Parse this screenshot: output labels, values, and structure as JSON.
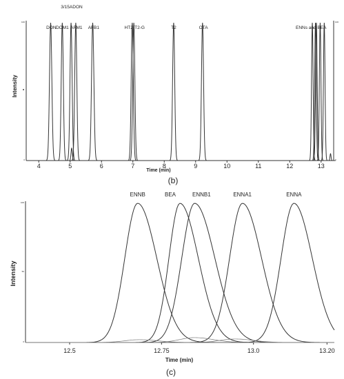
{
  "chart_data": [
    {
      "type": "line",
      "panel_label": "(b)",
      "xlabel": "Time (min)",
      "ylabel": "Intensity",
      "xlim": [
        3.6,
        13.4
      ],
      "x_ticks": [
        "4",
        "5",
        "6",
        "7",
        "8",
        "9",
        "10",
        "11",
        "12",
        "13"
      ],
      "y_ticks_left": [
        "100",
        "0"
      ],
      "y_ticks_right": [
        "100",
        "0"
      ],
      "ylim": [
        0,
        100
      ],
      "grid": false,
      "y_marker": ".",
      "labels": [
        {
          "text": "DON",
          "x": 4.4
        },
        {
          "text": "DOM1",
          "x": 4.75
        },
        {
          "text": "3/15ADON",
          "x": 5.05
        },
        {
          "text": "AFM1",
          "x": 5.2
        },
        {
          "text": "AFB1",
          "x": 5.75
        },
        {
          "text": "HT2",
          "x": 6.95
        },
        {
          "text": "T2-G",
          "x": 7.0
        },
        {
          "text": "T2",
          "x": 8.3
        },
        {
          "text": "OTA",
          "x": 9.25
        },
        {
          "text": "ENNs and BEA",
          "x": 12.9
        }
      ],
      "series": [
        {
          "x": 4.38,
          "height": 100,
          "width": 0.09
        },
        {
          "x": 4.75,
          "height": 100,
          "width": 0.08
        },
        {
          "x": 5.03,
          "height": 100,
          "width": 0.08
        },
        {
          "x": 5.18,
          "height": 100,
          "width": 0.08
        },
        {
          "x": 5.72,
          "height": 100,
          "width": 0.09
        },
        {
          "x": 6.98,
          "height": 100,
          "width": 0.08
        },
        {
          "x": 7.03,
          "height": 100,
          "width": 0.08
        },
        {
          "x": 8.3,
          "height": 100,
          "width": 0.08
        },
        {
          "x": 9.22,
          "height": 100,
          "width": 0.08
        },
        {
          "x": 12.72,
          "height": 100,
          "width": 0.06
        },
        {
          "x": 12.82,
          "height": 100,
          "width": 0.06
        },
        {
          "x": 12.85,
          "height": 100,
          "width": 0.06
        },
        {
          "x": 12.97,
          "height": 100,
          "width": 0.06
        },
        {
          "x": 13.1,
          "height": 100,
          "width": 0.06
        },
        {
          "x": 5.05,
          "height": 9,
          "width": 0.05
        },
        {
          "x": 13.3,
          "height": 5,
          "width": 0.04
        }
      ]
    },
    {
      "type": "line",
      "panel_label": "(c)",
      "xlabel": "Time (min)",
      "ylabel": "Intensity",
      "xlim": [
        12.38,
        13.22
      ],
      "x_ticks": [
        "12.5",
        "12.75",
        "13.0",
        "13.20"
      ],
      "y_ticks": [
        "100",
        "50",
        "0"
      ],
      "ylim": [
        0,
        100
      ],
      "grid": false,
      "series": [
        {
          "name": "ENNB",
          "peak_x": 12.685,
          "height": 100,
          "rise": 0.035,
          "fall": 0.052
        },
        {
          "name": "BEA",
          "peak_x": 12.8,
          "height": 100,
          "rise": 0.03,
          "fall": 0.05
        },
        {
          "name": "ENNB1",
          "peak_x": 12.84,
          "height": 100,
          "rise": 0.035,
          "fall": 0.055
        },
        {
          "name": "ENNA1",
          "peak_x": 12.97,
          "height": 100,
          "rise": 0.035,
          "fall": 0.052
        },
        {
          "name": "ENNA",
          "peak_x": 13.11,
          "height": 100,
          "rise": 0.035,
          "fall": 0.05
        }
      ],
      "minor_peaks": [
        {
          "x": 12.69,
          "height": 2
        },
        {
          "x": 12.84,
          "height": 3.5
        },
        {
          "x": 12.95,
          "height": 2.5
        }
      ]
    }
  ]
}
